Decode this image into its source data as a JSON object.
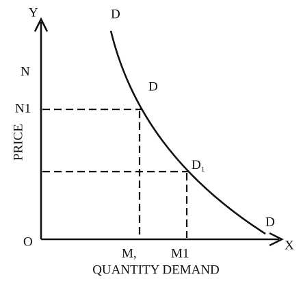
{
  "axes": {
    "y_label": "Y",
    "x_label": "X",
    "origin": "O",
    "y_title": "PRICE",
    "x_title": "QUANTITY DEMAND"
  },
  "y_points": [
    "N",
    "N1"
  ],
  "x_points": [
    "M,",
    "M1"
  ],
  "curve_labels": [
    {
      "text": "D"
    },
    {
      "text": "D"
    },
    {
      "text": "D",
      "subscript": "1"
    },
    {
      "text": "D"
    }
  ]
}
